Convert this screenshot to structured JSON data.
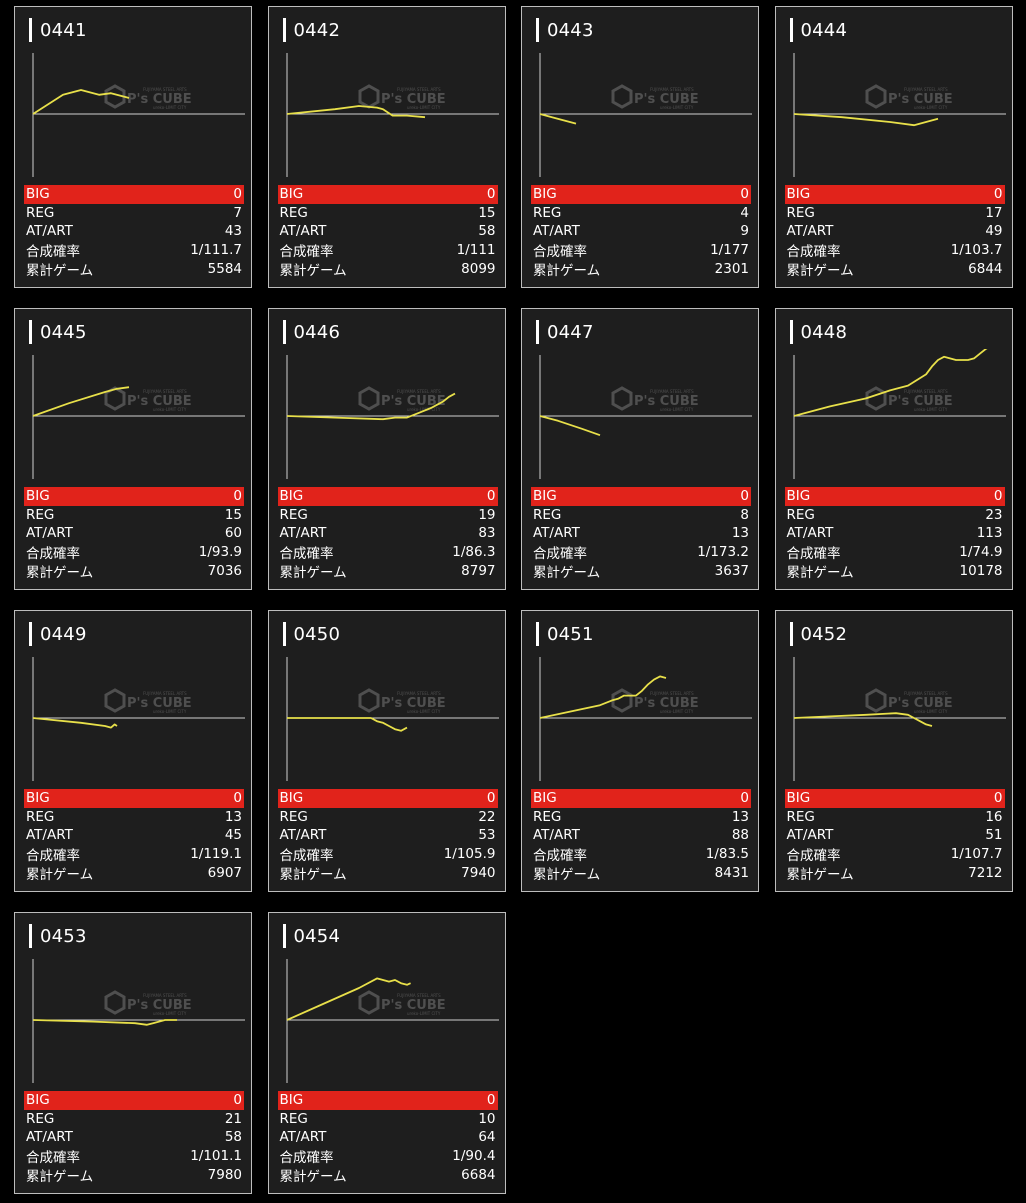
{
  "labels": {
    "big": "BIG",
    "reg": "REG",
    "atart": "AT/ART",
    "combined": "合成確率",
    "games": "累計ゲーム"
  },
  "watermark": {
    "brand": "P's CUBE",
    "tagline": "FUJIYAMA STEEL ARTS",
    "subtitle": "ureko-LIMIT CITY"
  },
  "colors": {
    "line": "#e8e04a",
    "big_band": "#e1231b",
    "card_bg": "#1e1e1e",
    "axis": "#d0d0d0"
  },
  "machines": [
    {
      "id": "0441",
      "big": "0",
      "reg": "7",
      "atart": "43",
      "combined": "1/111.7",
      "games": "5584",
      "trend": [
        [
          0,
          0
        ],
        [
          25,
          12
        ],
        [
          40,
          15
        ],
        [
          55,
          12
        ],
        [
          65,
          13
        ],
        [
          80,
          10
        ]
      ]
    },
    {
      "id": "0442",
      "big": "0",
      "reg": "15",
      "atart": "58",
      "combined": "1/111",
      "games": "8099",
      "trend": [
        [
          0,
          0
        ],
        [
          40,
          3
        ],
        [
          60,
          5
        ],
        [
          75,
          4
        ],
        [
          80,
          3
        ],
        [
          88,
          -1
        ],
        [
          100,
          -1
        ],
        [
          115,
          -2
        ]
      ]
    },
    {
      "id": "0443",
      "big": "0",
      "reg": "4",
      "atart": "9",
      "combined": "1/177",
      "games": "2301",
      "trend": [
        [
          0,
          0
        ],
        [
          10,
          -2
        ],
        [
          30,
          -6
        ]
      ]
    },
    {
      "id": "0444",
      "big": "0",
      "reg": "17",
      "atart": "49",
      "combined": "1/103.7",
      "games": "6844",
      "trend": [
        [
          0,
          0
        ],
        [
          40,
          -2
        ],
        [
          80,
          -5
        ],
        [
          100,
          -7
        ],
        [
          110,
          -5
        ],
        [
          115,
          -4
        ],
        [
          120,
          -3
        ]
      ]
    },
    {
      "id": "0445",
      "big": "0",
      "reg": "15",
      "atart": "60",
      "combined": "1/93.9",
      "games": "7036",
      "trend": [
        [
          0,
          0
        ],
        [
          30,
          8
        ],
        [
          60,
          15
        ],
        [
          70,
          17
        ],
        [
          80,
          18
        ]
      ]
    },
    {
      "id": "0446",
      "big": "0",
      "reg": "19",
      "atart": "83",
      "combined": "1/86.3",
      "games": "8797",
      "trend": [
        [
          0,
          0
        ],
        [
          40,
          -1
        ],
        [
          80,
          -2
        ],
        [
          90,
          -1
        ],
        [
          100,
          -1
        ],
        [
          110,
          2
        ],
        [
          120,
          5
        ],
        [
          125,
          7
        ],
        [
          130,
          9
        ],
        [
          135,
          12
        ],
        [
          140,
          14
        ]
      ]
    },
    {
      "id": "0447",
      "big": "0",
      "reg": "8",
      "atart": "13",
      "combined": "1/173.2",
      "games": "3637",
      "trend": [
        [
          0,
          0
        ],
        [
          15,
          -3
        ],
        [
          35,
          -8
        ],
        [
          50,
          -12
        ]
      ]
    },
    {
      "id": "0448",
      "big": "0",
      "reg": "23",
      "atart": "113",
      "combined": "1/74.9",
      "games": "10178",
      "trend": [
        [
          0,
          0
        ],
        [
          30,
          6
        ],
        [
          60,
          11
        ],
        [
          80,
          16
        ],
        [
          95,
          19
        ],
        [
          110,
          26
        ],
        [
          115,
          31
        ],
        [
          120,
          35
        ],
        [
          125,
          37
        ],
        [
          130,
          36
        ],
        [
          135,
          35
        ],
        [
          145,
          35
        ],
        [
          150,
          36
        ],
        [
          155,
          39
        ],
        [
          160,
          42
        ],
        [
          165,
          44
        ],
        [
          170,
          46
        ]
      ]
    },
    {
      "id": "0449",
      "big": "0",
      "reg": "13",
      "atart": "45",
      "combined": "1/119.1",
      "games": "6907",
      "trend": [
        [
          0,
          0
        ],
        [
          40,
          -3
        ],
        [
          60,
          -5
        ],
        [
          65,
          -6
        ],
        [
          68,
          -4
        ],
        [
          70,
          -5
        ]
      ]
    },
    {
      "id": "0450",
      "big": "0",
      "reg": "22",
      "atart": "53",
      "combined": "1/105.9",
      "games": "7940",
      "trend": [
        [
          0,
          0
        ],
        [
          50,
          0
        ],
        [
          70,
          0
        ],
        [
          75,
          -2
        ],
        [
          80,
          -3
        ],
        [
          85,
          -5
        ],
        [
          90,
          -7
        ],
        [
          95,
          -8
        ],
        [
          100,
          -6
        ]
      ]
    },
    {
      "id": "0451",
      "big": "0",
      "reg": "13",
      "atart": "88",
      "combined": "1/83.5",
      "games": "8431",
      "trend": [
        [
          0,
          0
        ],
        [
          25,
          4
        ],
        [
          50,
          8
        ],
        [
          60,
          11
        ],
        [
          65,
          12
        ],
        [
          70,
          14
        ],
        [
          80,
          14
        ],
        [
          85,
          17
        ],
        [
          90,
          21
        ],
        [
          95,
          24
        ],
        [
          100,
          26
        ],
        [
          105,
          25
        ]
      ]
    },
    {
      "id": "0452",
      "big": "0",
      "reg": "16",
      "atart": "51",
      "combined": "1/107.7",
      "games": "7212",
      "trend": [
        [
          0,
          0
        ],
        [
          30,
          1
        ],
        [
          60,
          2
        ],
        [
          85,
          3
        ],
        [
          95,
          2
        ],
        [
          100,
          0
        ],
        [
          105,
          -2
        ],
        [
          110,
          -4
        ],
        [
          115,
          -5
        ]
      ]
    },
    {
      "id": "0453",
      "big": "0",
      "reg": "21",
      "atart": "58",
      "combined": "1/101.1",
      "games": "7980",
      "trend": [
        [
          0,
          0
        ],
        [
          50,
          -1
        ],
        [
          85,
          -2
        ],
        [
          95,
          -3
        ],
        [
          100,
          -2
        ],
        [
          105,
          -1
        ],
        [
          110,
          0
        ],
        [
          120,
          0
        ]
      ]
    },
    {
      "id": "0454",
      "big": "0",
      "reg": "10",
      "atart": "64",
      "combined": "1/90.4",
      "games": "6684",
      "trend": [
        [
          0,
          0
        ],
        [
          30,
          10
        ],
        [
          60,
          20
        ],
        [
          75,
          26
        ],
        [
          85,
          24
        ],
        [
          90,
          25
        ],
        [
          95,
          23
        ],
        [
          100,
          22
        ],
        [
          103,
          23
        ]
      ]
    }
  ]
}
